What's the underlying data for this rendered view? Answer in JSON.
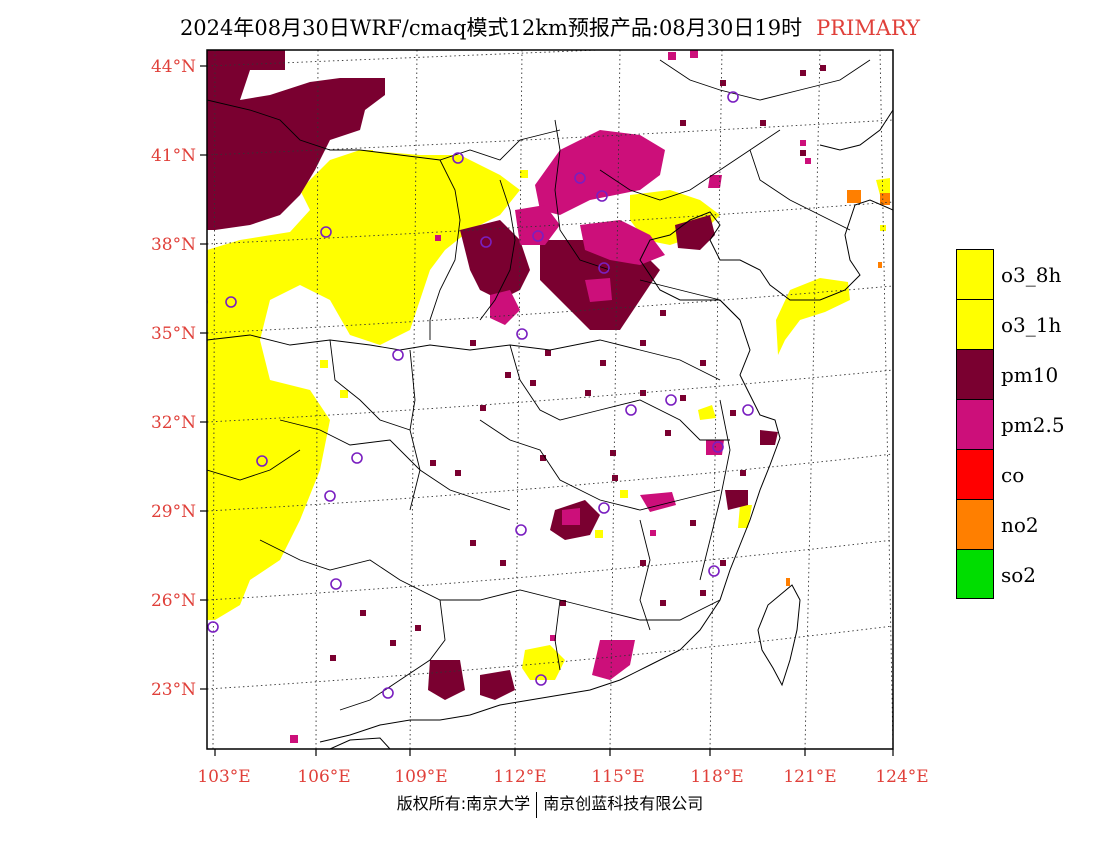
{
  "header": {
    "title": "2024年08月30日WRF/cmaq模式12km预报产品:08月30日19时",
    "tag": "PRIMARY"
  },
  "map": {
    "lat_labels": [
      "44°N",
      "41°N",
      "38°N",
      "35°N",
      "32°N",
      "29°N",
      "26°N",
      "23°N"
    ],
    "lon_labels": [
      "103°E",
      "106°E",
      "109°E",
      "112°E",
      "115°E",
      "118°E",
      "121°E",
      "124°E"
    ],
    "lat_range": [
      21,
      44.5
    ],
    "lon_range": [
      103,
      124
    ],
    "grid": "dotted",
    "colors": {
      "o3_8h": "#ffff00",
      "o3_1h": "#ffff00",
      "pm10": "#7a0030",
      "pm2_5": "#cc0f7a",
      "co": "#ff0000",
      "no2": "#ff7f00",
      "so2": "#00dd00",
      "station": "#7a1fc0",
      "label": "#e0403a"
    }
  },
  "legend": [
    {
      "label": "o3_8h",
      "color": "#ffff00"
    },
    {
      "label": "o3_1h",
      "color": "#ffff00"
    },
    {
      "label": "pm10",
      "color": "#7a0030"
    },
    {
      "label": "pm2.5",
      "color": "#cc0f7a"
    },
    {
      "label": "co",
      "color": "#ff0000"
    },
    {
      "label": "no2",
      "color": "#ff7f00"
    },
    {
      "label": "so2",
      "color": "#00dd00"
    }
  ],
  "footer": {
    "owner": "版权所有:南京大学",
    "company": "南京创蓝科技有限公司"
  }
}
